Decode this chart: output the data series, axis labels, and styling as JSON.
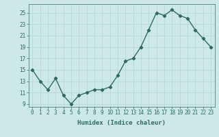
{
  "x": [
    0,
    1,
    2,
    3,
    4,
    5,
    6,
    7,
    8,
    9,
    10,
    11,
    12,
    13,
    14,
    15,
    16,
    17,
    18,
    19,
    20,
    21,
    22,
    23
  ],
  "y": [
    15,
    13,
    11.5,
    13.5,
    10.5,
    9,
    10.5,
    11,
    11.5,
    11.5,
    12,
    14,
    16.5,
    17,
    19,
    22,
    25,
    24.5,
    25.5,
    24.5,
    24,
    22,
    20.5,
    19
  ],
  "line_color": "#2e6b5e",
  "bg_color": "#cce9e5",
  "grid_color": "#b8d8d4",
  "xlabel": "Humidex (Indice chaleur)",
  "xlim": [
    -0.5,
    23.5
  ],
  "ylim": [
    8.5,
    26.5
  ],
  "yticks": [
    9,
    11,
    13,
    15,
    17,
    19,
    21,
    23,
    25
  ],
  "xticks": [
    0,
    1,
    2,
    3,
    4,
    5,
    6,
    7,
    8,
    9,
    10,
    11,
    12,
    13,
    14,
    15,
    16,
    17,
    18,
    19,
    20,
    21,
    22,
    23
  ],
  "marker": "D",
  "marker_size": 2.2,
  "line_width": 1.0,
  "tick_fontsize": 5.5,
  "xlabel_fontsize": 6.5
}
